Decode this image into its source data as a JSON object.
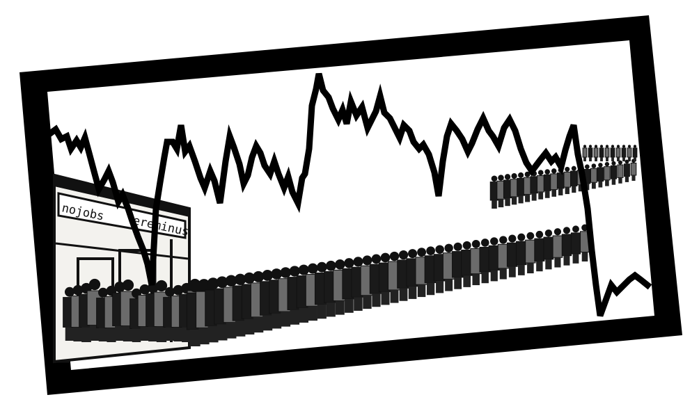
{
  "illustration": {
    "sign_text": "nojobs",
    "sign_text_tail": "ereminus",
    "colors": {
      "frame": "#000000",
      "background": "#ffffff",
      "ink": "#111111",
      "paper": "#f3f2ee"
    }
  }
}
